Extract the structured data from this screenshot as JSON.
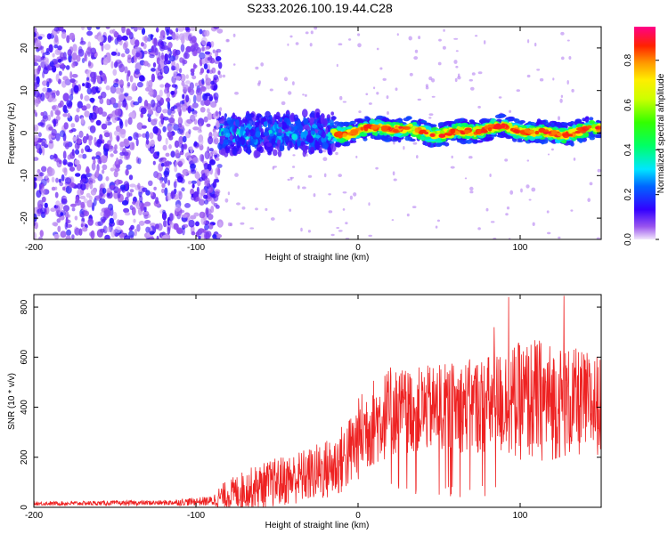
{
  "title": "S233.2026.100.19.44.C28",
  "chart_data": [
    {
      "type": "heatmap",
      "name": "spectrogram",
      "xlabel": "Height of straight line (km)",
      "ylabel": "Frequency (Hz)",
      "xlim": [
        -200,
        150
      ],
      "ylim": [
        -25,
        25
      ],
      "xticks": [
        -200,
        -100,
        0,
        100
      ],
      "yticks": [
        20,
        10,
        0,
        -10,
        -20
      ],
      "colorbar": {
        "label": "Normalized spectral amplitude",
        "range": [
          0,
          0.95
        ],
        "ticks": [
          0.0,
          0.2,
          0.4,
          0.6,
          0.8
        ]
      },
      "features": [
        {
          "region": "noise",
          "x_range": [
            -200,
            -85
          ],
          "freq_range": [
            -25,
            25
          ],
          "typical_amplitude": 0.1
        },
        {
          "region": "onset",
          "x_range": [
            -85,
            -15
          ],
          "freq_center": 0,
          "freq_halfwidth": 4,
          "typical_amplitude": 0.25
        },
        {
          "region": "strong_signal",
          "x_range": [
            -15,
            150
          ],
          "freq_center": 0.5,
          "freq_halfwidth": 1.5,
          "peak_amplitude": 0.9
        }
      ]
    },
    {
      "type": "line",
      "name": "snr",
      "xlabel": "Height of straight line (km)",
      "ylabel": "SNR (10 * v/v)",
      "xlim": [
        -200,
        150
      ],
      "ylim": [
        0,
        850
      ],
      "xticks": [
        -200,
        -100,
        0,
        100
      ],
      "yticks": [
        0,
        200,
        400,
        600,
        800
      ],
      "color": "#ee2222",
      "envelope": {
        "x": [
          -200,
          -120,
          -90,
          -85,
          -70,
          -50,
          -30,
          -15,
          -5,
          5,
          20,
          35,
          60,
          80,
          95,
          110,
          125,
          150
        ],
        "base": [
          15,
          18,
          25,
          40,
          70,
          100,
          130,
          160,
          220,
          320,
          380,
          390,
          400,
          410,
          420,
          430,
          420,
          410
        ],
        "amplitude": [
          8,
          10,
          20,
          50,
          80,
          100,
          110,
          130,
          150,
          180,
          180,
          170,
          180,
          200,
          230,
          250,
          230,
          200
        ]
      },
      "peaks": [
        {
          "x": 93,
          "y": 840
        },
        {
          "x": 127,
          "y": 845
        },
        {
          "x": 84,
          "y": 720
        }
      ]
    }
  ]
}
